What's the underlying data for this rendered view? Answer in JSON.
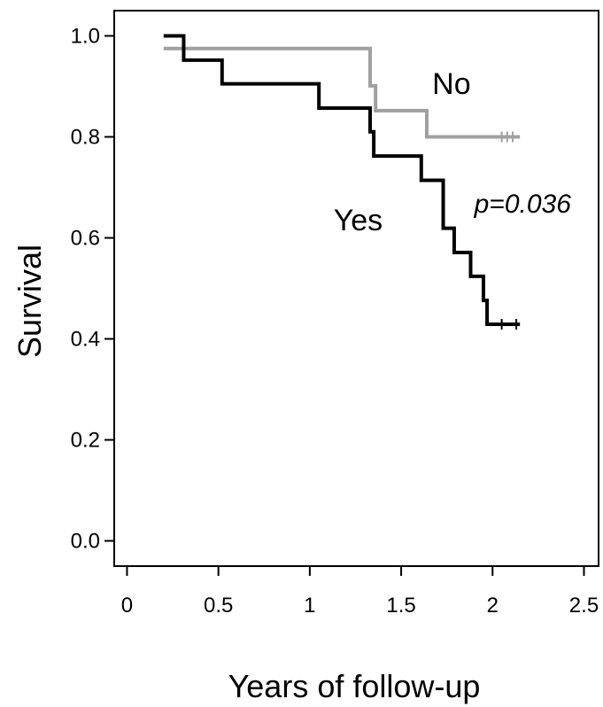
{
  "chart_data": {
    "type": "line",
    "step": true,
    "xlabel": "Years of follow-up",
    "ylabel": "Survival",
    "xlim": [
      -0.07,
      2.58
    ],
    "ylim": [
      -0.05,
      1.05
    ],
    "x_ticks": [
      0,
      0.5,
      1,
      1.5,
      2,
      2.5
    ],
    "x_tick_labels": [
      "0",
      "0.5",
      "1",
      "1.5",
      "2",
      "2.5"
    ],
    "y_ticks": [
      0.0,
      0.2,
      0.4,
      0.6,
      0.8,
      1.0
    ],
    "y_tick_labels": [
      "0.0",
      "0.2",
      "0.4",
      "0.6",
      "0.8",
      "1.0"
    ],
    "grid": false,
    "annotation": "p=0.036",
    "series": [
      {
        "name": "No",
        "color": "#a0a0a0",
        "x": [
          0.21,
          1.33,
          1.36,
          1.64,
          2.14
        ],
        "y": [
          0.975,
          0.901,
          0.852,
          0.8,
          0.8
        ],
        "censored_x": [
          2.05,
          2.08,
          2.11
        ]
      },
      {
        "name": "Yes",
        "color": "#000000",
        "x": [
          0.21,
          0.31,
          0.52,
          1.05,
          1.33,
          1.35,
          1.61,
          1.73,
          1.79,
          1.88,
          1.95,
          1.97,
          2.14
        ],
        "y": [
          1.0,
          0.952,
          0.905,
          0.857,
          0.81,
          0.762,
          0.714,
          0.619,
          0.571,
          0.524,
          0.476,
          0.429,
          0.429
        ],
        "censored_x": [
          2.05,
          2.13
        ]
      }
    ]
  }
}
